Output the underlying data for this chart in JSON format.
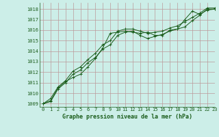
{
  "title": "Graphe pression niveau de la mer (hPa)",
  "background_color": "#cceee8",
  "grid_color": "#bb9999",
  "line_color": "#1a5c1a",
  "xlim": [
    -0.5,
    23
  ],
  "ylim": [
    1008.7,
    1018.6
  ],
  "yticks": [
    1009,
    1010,
    1011,
    1012,
    1013,
    1014,
    1015,
    1016,
    1017,
    1018
  ],
  "xticks": [
    0,
    1,
    2,
    3,
    4,
    5,
    6,
    7,
    8,
    9,
    10,
    11,
    12,
    13,
    14,
    15,
    16,
    17,
    18,
    19,
    20,
    21,
    22,
    23
  ],
  "series": [
    [
      1009.0,
      1009.3,
      1010.5,
      1011.1,
      1011.5,
      1011.8,
      1012.5,
      1013.3,
      1014.3,
      1015.7,
      1015.8,
      1015.9,
      1015.8,
      1015.7,
      1015.8,
      1015.5,
      1015.5,
      1016.0,
      1016.1,
      1017.0,
      1017.8,
      1017.5,
      1017.9,
      1018.0
    ],
    [
      1009.0,
      1009.2,
      1010.4,
      1011.0,
      1011.8,
      1012.2,
      1012.9,
      1013.4,
      1014.2,
      1014.6,
      1015.5,
      1015.8,
      1015.9,
      1015.5,
      1015.2,
      1015.4,
      1015.6,
      1015.9,
      1016.1,
      1016.3,
      1016.9,
      1017.4,
      1018.0,
      1018.0
    ],
    [
      1009.0,
      1009.5,
      1010.6,
      1011.2,
      1012.1,
      1012.5,
      1013.2,
      1013.8,
      1014.6,
      1015.0,
      1015.9,
      1016.1,
      1016.1,
      1015.9,
      1015.7,
      1015.8,
      1015.9,
      1016.2,
      1016.4,
      1016.8,
      1017.2,
      1017.6,
      1018.1,
      1018.1
    ]
  ],
  "figsize": [
    3.2,
    2.0
  ],
  "dpi": 100
}
